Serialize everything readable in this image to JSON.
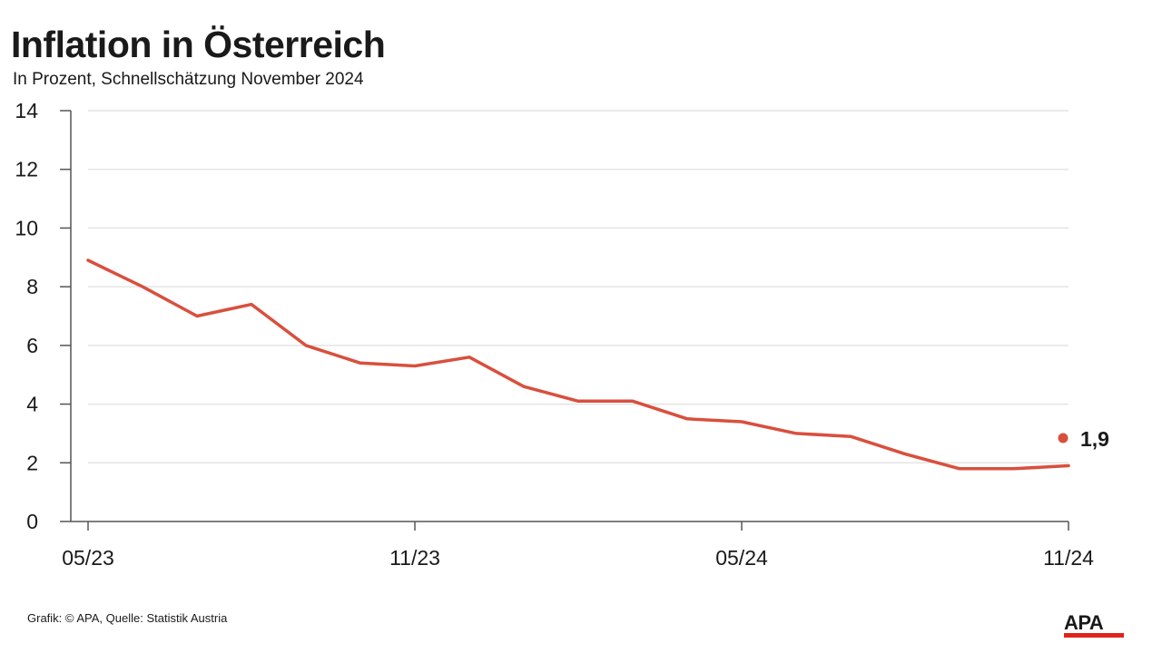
{
  "colors": {
    "line": "#d94f3d",
    "grid": "#e4e4e4",
    "axis": "#555555",
    "text": "#1a1a1a",
    "brand_red": "#e2231a"
  },
  "chart_data": {
    "type": "line",
    "title": "Inflation in Österreich",
    "subtitle": "In Prozent, Schnellschätzung November 2024",
    "xlabel": "",
    "ylabel": "",
    "ylim": [
      0,
      14
    ],
    "yticks": [
      0,
      2,
      4,
      6,
      8,
      10,
      12,
      14
    ],
    "x_tick_labels": [
      "05/23",
      "11/23",
      "05/24",
      "11/24"
    ],
    "grid": true,
    "series": [
      {
        "x": [
          "05/23",
          "06/23",
          "07/23",
          "08/23",
          "09/23",
          "10/23",
          "11/23",
          "12/23",
          "01/24",
          "02/24",
          "03/24",
          "04/24",
          "05/24",
          "06/24",
          "07/24",
          "08/24",
          "09/24",
          "10/24",
          "11/24"
        ],
        "values": [
          8.9,
          8.0,
          7.0,
          7.4,
          6.0,
          5.4,
          5.3,
          5.6,
          4.6,
          4.1,
          4.1,
          3.5,
          3.4,
          3.0,
          2.9,
          2.3,
          1.8,
          1.8,
          1.9
        ]
      }
    ],
    "annotations": [
      {
        "text": "1,9",
        "x": "11/24",
        "value": 1.9
      }
    ]
  },
  "footer": {
    "credit": "Grafik: © APA, Quelle: Statistik Austria"
  },
  "logo": {
    "text": "APA"
  }
}
